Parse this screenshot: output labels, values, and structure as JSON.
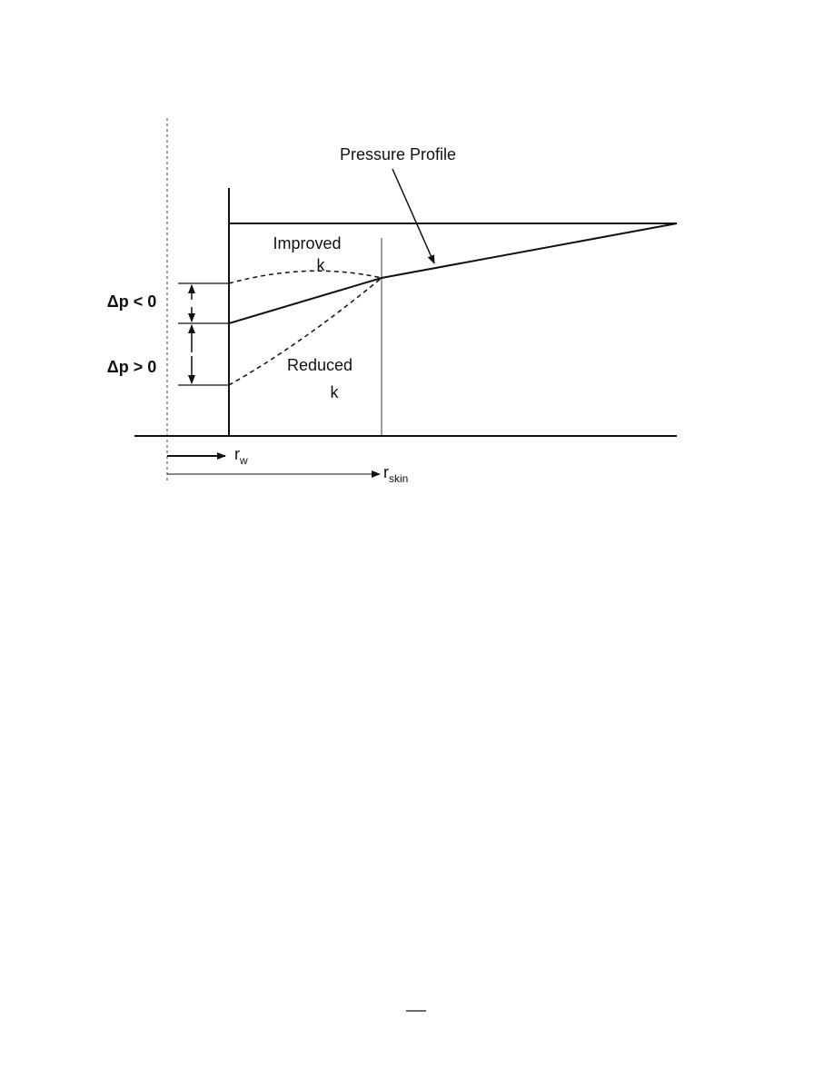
{
  "diagram": {
    "pressure_profile_label": "Pressure Profile",
    "improved_label": [
      "Improved",
      "k"
    ],
    "reduced_label": [
      "Reduced",
      "k"
    ],
    "dp_negative": "Δp < 0",
    "dp_positive": "Δp > 0",
    "r_w": {
      "symbol": "r",
      "subscript": "w"
    },
    "r_skin": {
      "symbol": "r",
      "subscript": "skin"
    }
  }
}
